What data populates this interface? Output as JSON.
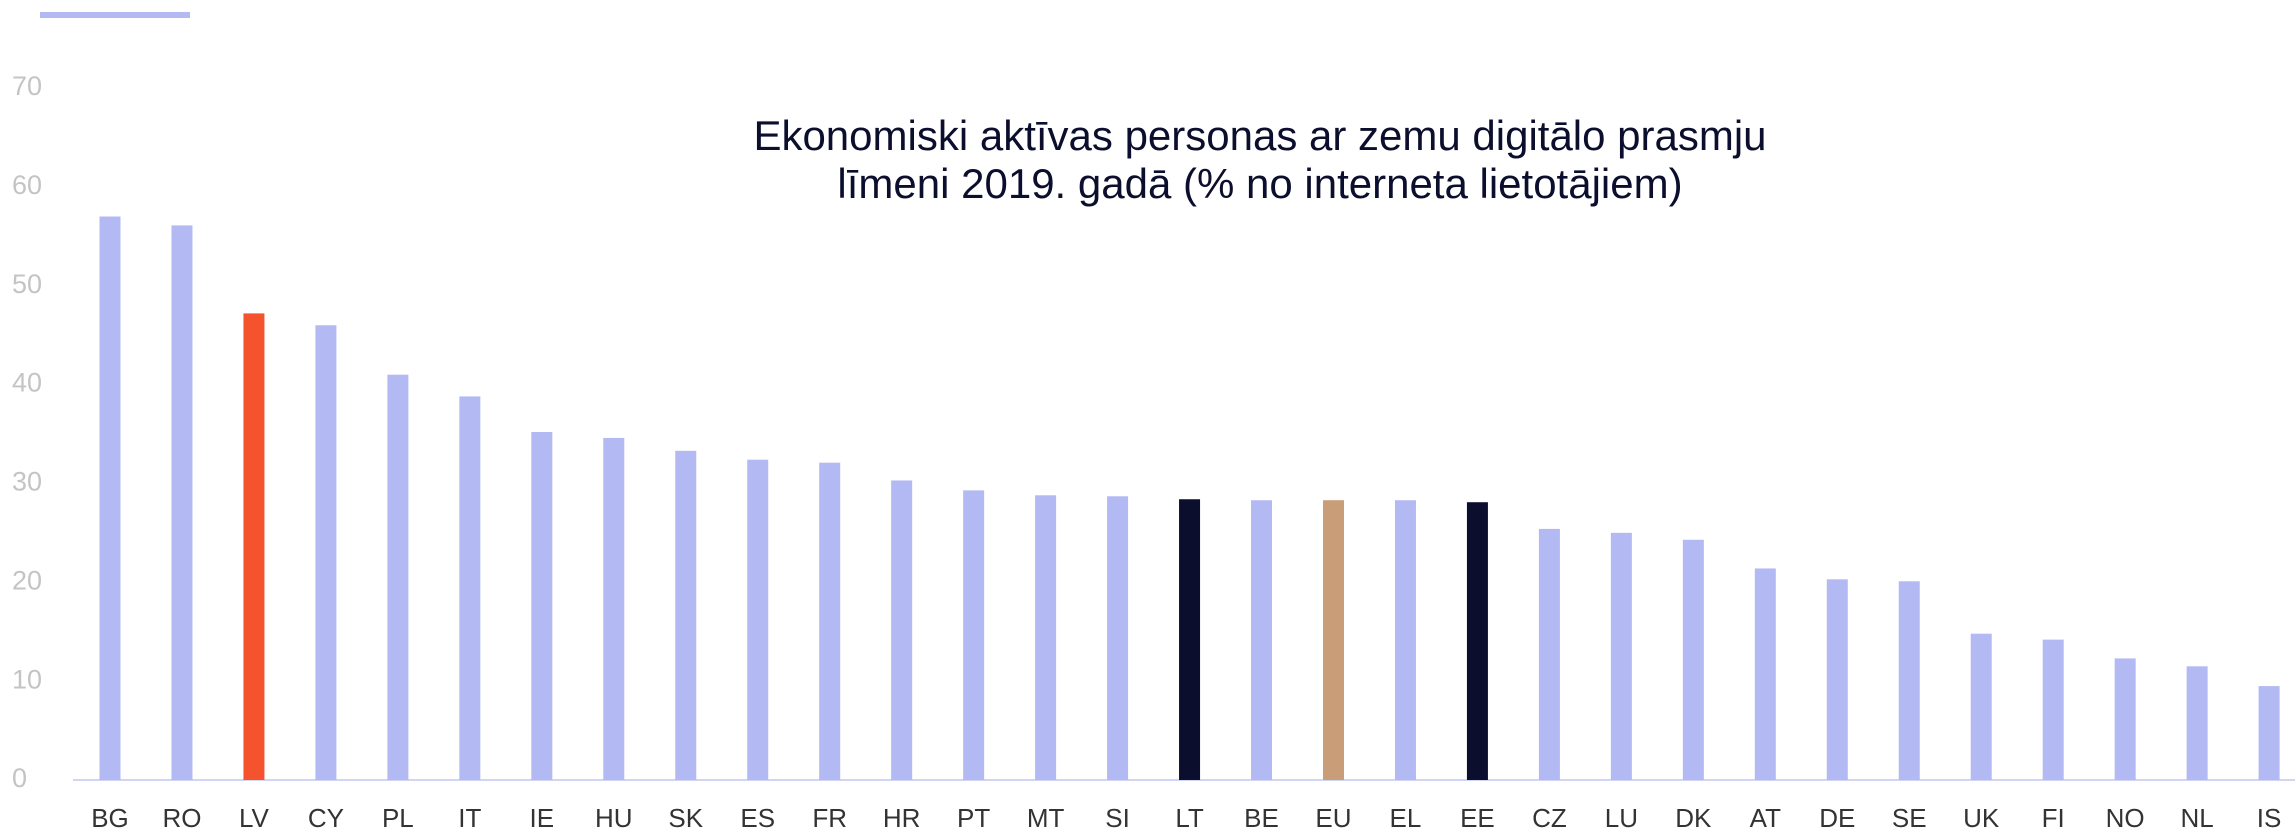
{
  "chart_data": {
    "type": "bar",
    "title": [
      "Ekonomiski aktīvas personas ar zemu digitālo prasmju",
      "līmeni 2019. gadā (% no interneta lietotājiem)"
    ],
    "categories": [
      "BG",
      "RO",
      "LV",
      "CY",
      "PL",
      "IT",
      "IE",
      "HU",
      "SK",
      "ES",
      "FR",
      "HR",
      "PT",
      "MT",
      "SI",
      "LT",
      "BE",
      "EU",
      "EL",
      "EE",
      "CZ",
      "LU",
      "DK",
      "AT",
      "DE",
      "SE",
      "UK",
      "FI",
      "NO",
      "NL",
      "IS"
    ],
    "values": [
      57.0,
      56.1,
      47.2,
      46.0,
      41.0,
      38.8,
      35.2,
      34.6,
      33.3,
      32.4,
      32.1,
      30.3,
      29.3,
      28.8,
      28.7,
      28.4,
      28.3,
      28.3,
      28.3,
      28.1,
      25.4,
      25.0,
      24.3,
      21.4,
      20.3,
      20.1,
      14.8,
      14.2,
      12.3,
      11.5,
      9.5
    ],
    "colors": [
      "#b3b9f2",
      "#b3b9f2",
      "#f4532e",
      "#b3b9f2",
      "#b3b9f2",
      "#b3b9f2",
      "#b3b9f2",
      "#b3b9f2",
      "#b3b9f2",
      "#b3b9f2",
      "#b3b9f2",
      "#b3b9f2",
      "#b3b9f2",
      "#b3b9f2",
      "#b3b9f2",
      "#0b0e2c",
      "#b3b9f2",
      "#c89d77",
      "#b3b9f2",
      "#0b0e2c",
      "#b3b9f2",
      "#b3b9f2",
      "#b3b9f2",
      "#b3b9f2",
      "#b3b9f2",
      "#b3b9f2",
      "#b3b9f2",
      "#b3b9f2",
      "#b3b9f2",
      "#b3b9f2",
      "#b3b9f2"
    ],
    "ylim": [
      0,
      70
    ],
    "yticks": [
      0,
      10,
      20,
      30,
      40,
      50,
      60,
      70
    ],
    "grid": false
  }
}
